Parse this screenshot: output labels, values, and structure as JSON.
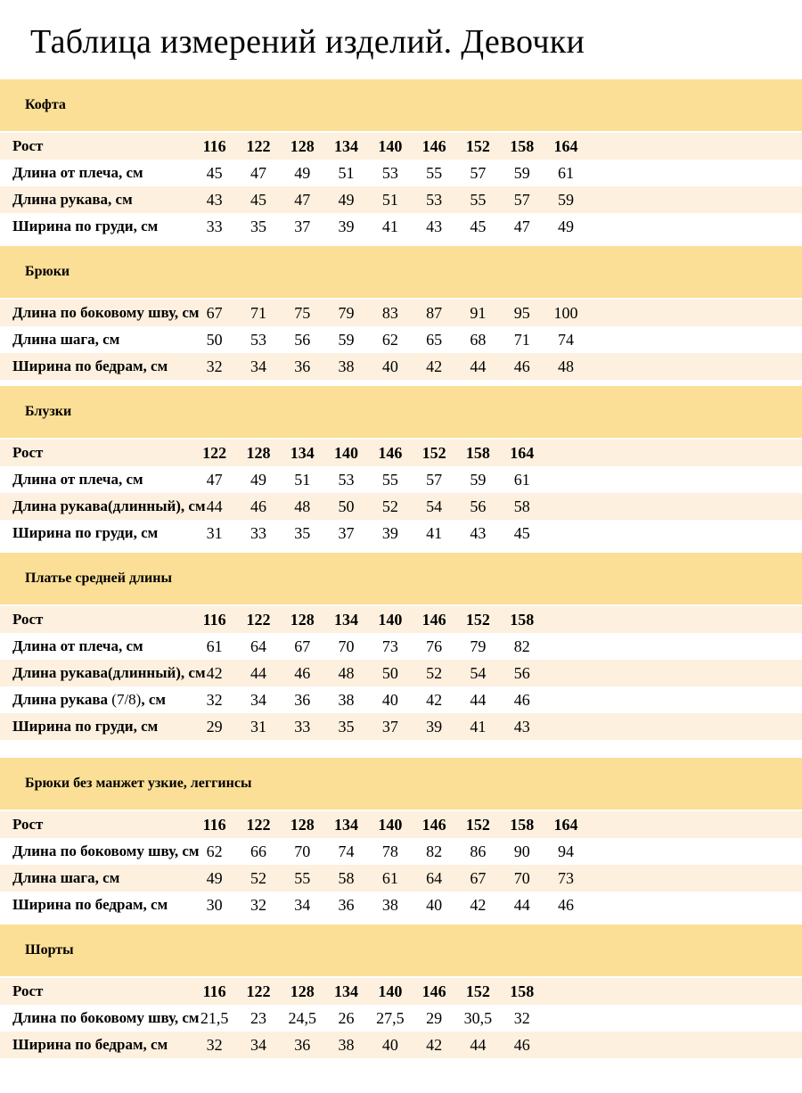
{
  "title": "Таблица измерений изделий. Девочки",
  "height_row_label": "Рост",
  "colors": {
    "band": "#fcdf96",
    "row_peach": "#fdf0de",
    "row_white": "#ffffff",
    "text": "#000000"
  },
  "sections": [
    {
      "name": "Кофта",
      "heights": [
        "116",
        "122",
        "128",
        "134",
        "140",
        "146",
        "152",
        "158",
        "164"
      ],
      "rows": [
        {
          "label": "Длина от плеча, см",
          "values": [
            "45",
            "47",
            "49",
            "51",
            "53",
            "55",
            "57",
            "59",
            "61"
          ]
        },
        {
          "label": "Длина рукава, см",
          "values": [
            "43",
            "45",
            "47",
            "49",
            "51",
            "53",
            "55",
            "57",
            "59"
          ]
        },
        {
          "label": "Ширина по груди, см",
          "values": [
            "33",
            "35",
            "37",
            "39",
            "41",
            "43",
            "45",
            "47",
            "49"
          ]
        }
      ]
    },
    {
      "name": "Брюки",
      "heights": null,
      "rows": [
        {
          "label": "Длина по боковому шву, см",
          "values": [
            "67",
            "71",
            "75",
            "79",
            "83",
            "87",
            "91",
            "95",
            "100"
          ]
        },
        {
          "label": "Длина шага, см",
          "values": [
            "50",
            "53",
            "56",
            "59",
            "62",
            "65",
            "68",
            "71",
            "74"
          ]
        },
        {
          "label": "Ширина по бедрам, см",
          "values": [
            "32",
            "34",
            "36",
            "38",
            "40",
            "42",
            "44",
            "46",
            "48"
          ]
        }
      ]
    },
    {
      "name": "Блузки",
      "heights": [
        "122",
        "128",
        "134",
        "140",
        "146",
        "152",
        "158",
        "164"
      ],
      "rows": [
        {
          "label": "Длина от плеча, см",
          "values": [
            "47",
            "49",
            "51",
            "53",
            "55",
            "57",
            "59",
            "61"
          ]
        },
        {
          "label": "Длина рукава(длинный), см",
          "values": [
            "44",
            "46",
            "48",
            "50",
            "52",
            "54",
            "56",
            "58"
          ]
        },
        {
          "label": "Ширина по груди, см",
          "values": [
            "31",
            "33",
            "35",
            "37",
            "39",
            "41",
            "43",
            "45"
          ]
        }
      ]
    },
    {
      "name": "Платье средней длины",
      "heights": [
        "116",
        "122",
        "128",
        "134",
        "140",
        "146",
        "152",
        "158"
      ],
      "rows": [
        {
          "label": "Длина от плеча, см",
          "values": [
            "61",
            "64",
            "67",
            "70",
            "73",
            "76",
            "79",
            "82"
          ]
        },
        {
          "label": "Длина рукава(длинный), см",
          "values": [
            "42",
            "44",
            "46",
            "48",
            "50",
            "52",
            "54",
            "56"
          ]
        },
        {
          "label": "Длина рукава (7/8), см",
          "light_part": "(7/8)",
          "values": [
            "32",
            "34",
            "36",
            "38",
            "40",
            "42",
            "44",
            "46"
          ]
        },
        {
          "label": "Ширина по груди, см",
          "values": [
            "29",
            "31",
            "33",
            "35",
            "37",
            "39",
            "41",
            "43"
          ]
        }
      ]
    },
    {
      "name": "Брюки без манжет узкие, леггинсы",
      "extra_gap": true,
      "heights": [
        "116",
        "122",
        "128",
        "134",
        "140",
        "146",
        "152",
        "158",
        "164"
      ],
      "rows": [
        {
          "label": "Длина по боковому шву, см",
          "values": [
            "62",
            "66",
            "70",
            "74",
            "78",
            "82",
            "86",
            "90",
            "94"
          ]
        },
        {
          "label": "Длина шага, см",
          "values": [
            "49",
            "52",
            "55",
            "58",
            "61",
            "64",
            "67",
            "70",
            "73"
          ]
        },
        {
          "label": "Ширина по бедрам, см",
          "values": [
            "30",
            "32",
            "34",
            "36",
            "38",
            "40",
            "42",
            "44",
            "46"
          ]
        }
      ]
    },
    {
      "name": "Шорты",
      "heights": [
        "116",
        "122",
        "128",
        "134",
        "140",
        "146",
        "152",
        "158"
      ],
      "rows": [
        {
          "label": "Длина по боковому шву, см",
          "values": [
            "21,5",
            "23",
            "24,5",
            "26",
            "27,5",
            "29",
            "30,5",
            "32"
          ]
        },
        {
          "label": "Ширина по бедрам, см",
          "values": [
            "32",
            "34",
            "36",
            "38",
            "40",
            "42",
            "44",
            "46"
          ]
        }
      ]
    }
  ]
}
